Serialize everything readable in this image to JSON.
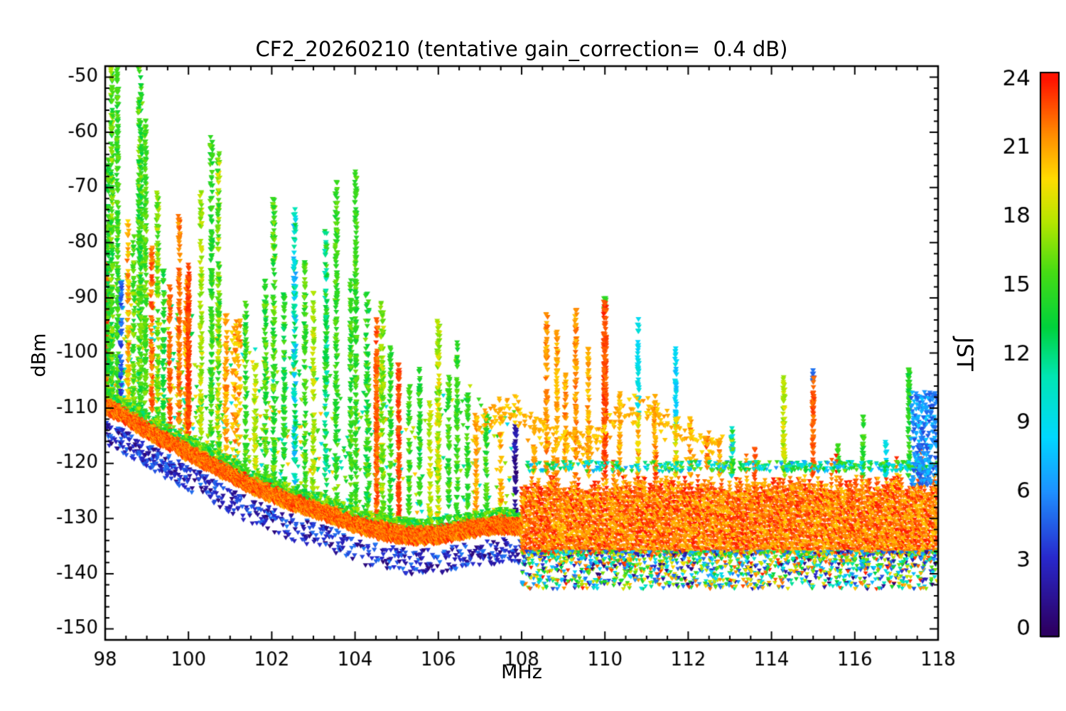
{
  "chart_data": {
    "type": "scatter",
    "title": "CF2_20260210 (tentative gain_correction=  0.4 dB)",
    "xlabel": "MHz",
    "ylabel": "dBm",
    "marker": "triangle-down",
    "grid": false,
    "xlim": [
      98,
      118
    ],
    "ylim": [
      -152,
      -48
    ],
    "xticks": [
      98,
      100,
      102,
      104,
      106,
      108,
      110,
      112,
      114,
      116,
      118
    ],
    "yticks": [
      -150,
      -140,
      -130,
      -120,
      -110,
      -100,
      -90,
      -80,
      -70,
      -60,
      -50
    ],
    "colorbar": {
      "label": "JST",
      "min": 0,
      "max": 24,
      "ticks": [
        0,
        3,
        6,
        9,
        12,
        15,
        18,
        21,
        24
      ],
      "position": "right",
      "stops": [
        [
          0.0,
          "#2d0064"
        ],
        [
          0.13,
          "#2828cc"
        ],
        [
          0.25,
          "#1e90ff"
        ],
        [
          0.35,
          "#00d8ff"
        ],
        [
          0.46,
          "#00e6b4"
        ],
        [
          0.55,
          "#00d23c"
        ],
        [
          0.65,
          "#46dc14"
        ],
        [
          0.74,
          "#b4e600"
        ],
        [
          0.82,
          "#ffdc00"
        ],
        [
          0.9,
          "#ff8c00"
        ],
        [
          1.0,
          "#ff1400"
        ]
      ]
    },
    "render_seed": 7,
    "noise_floor": {
      "points": [
        [
          98,
          -109.5
        ],
        [
          98.5,
          -111.5
        ],
        [
          99,
          -114
        ],
        [
          99.5,
          -116
        ],
        [
          100,
          -118
        ],
        [
          100.5,
          -120
        ],
        [
          101,
          -122
        ],
        [
          101.5,
          -124
        ],
        [
          102,
          -125.5
        ],
        [
          102.5,
          -127
        ],
        [
          103,
          -128.2
        ],
        [
          103.5,
          -129.5
        ],
        [
          104,
          -131
        ],
        [
          104.5,
          -132
        ],
        [
          105,
          -132.8
        ],
        [
          105.5,
          -133.2
        ],
        [
          106,
          -133
        ],
        [
          106.5,
          -132.3
        ],
        [
          107,
          -131.6
        ],
        [
          107.5,
          -131.2
        ],
        [
          107.98,
          -131.5
        ]
      ],
      "step": 0.008,
      "red_per_step": 7,
      "red_thickness": 1.7,
      "red_hour_min": 20.5,
      "red_hour_max": 24,
      "fringe_prob": 0.55,
      "fringe_hour_min": 12,
      "fringe_hour_max": 18,
      "blue_prob": 0.45,
      "blue_prob_left": 0.75,
      "blue_left_cut": 100,
      "blue_hour_min": 0.5,
      "blue_hour_max": 5.5,
      "blue_drop_min": 2.5,
      "blue_drop_max": 7
    },
    "airband": {
      "fmin": 108,
      "bottom": -136.5,
      "top_base": -122,
      "top_var": 3.5,
      "tall_prob": 0.04,
      "tall_top": -117,
      "comb_spacing": 0.04,
      "hour_min": 20,
      "hour_max": 24,
      "under_count": 1500,
      "under_depth": 6.8,
      "cap_count": 420,
      "cap_hour_min": 6,
      "cap_hour_max": 17
    },
    "fm_haze": {
      "count": 900,
      "fmax": 107.9,
      "left_bias": 1.5,
      "height": 26,
      "height_pow": 2.0,
      "hour_min": 9,
      "hour_max": 21
    },
    "arc_scatter": {
      "fmin": 106.9,
      "fmax": 112.9,
      "count": 280,
      "level": -112.5,
      "amp": 3.2,
      "freq": 2.0,
      "jitter": 3.5,
      "hour_min": 19.5,
      "hour_max": 21.5
    },
    "right_blue_cluster": {
      "fmin": 117.35,
      "fmax": 117.98,
      "top": -107,
      "bottom": -124,
      "count": 240,
      "hour_min": 4,
      "hour_max": 8
    },
    "spike_fields": [
      "freq_mhz",
      "top_dbm",
      "hour",
      "hour_spread",
      "width_mhz",
      "density",
      "base_dbm"
    ],
    "spikes": [
      [
        98.03,
        -85,
        22.5,
        1.2,
        0.05,
        4,
        null
      ],
      [
        98.07,
        -66,
        14.5,
        2,
        0.05,
        3,
        null
      ],
      [
        98.16,
        -48,
        15.5,
        2.5,
        0.06,
        3.2,
        null
      ],
      [
        98.3,
        -49,
        15,
        1.5,
        0.05,
        3,
        null
      ],
      [
        98.38,
        -88,
        4.5,
        1.5,
        0.04,
        2.2,
        null
      ],
      [
        98.55,
        -77,
        20.5,
        2,
        0.05,
        2.6,
        null
      ],
      [
        98.68,
        -80,
        16,
        2,
        0.05,
        2.4,
        null
      ],
      [
        98.84,
        -48,
        15,
        2.2,
        0.1,
        4.5,
        null
      ],
      [
        98.97,
        -59,
        15.5,
        1.5,
        0.05,
        3,
        null
      ],
      [
        99.12,
        -82,
        22,
        1.5,
        0.05,
        2.6,
        null
      ],
      [
        99.26,
        -72,
        16.5,
        2,
        0.05,
        2.6,
        null
      ],
      [
        99.4,
        -86,
        14,
        2,
        0.05,
        2.2,
        null
      ],
      [
        99.55,
        -89,
        22.5,
        1,
        0.04,
        3,
        null
      ],
      [
        99.78,
        -76,
        22,
        1.2,
        0.05,
        3,
        null
      ],
      [
        99.95,
        -88,
        21,
        1.5,
        0.08,
        2.6,
        null
      ],
      [
        100.0,
        -85,
        23,
        0.8,
        0.05,
        6,
        null
      ],
      [
        100.3,
        -72,
        17.5,
        1.5,
        0.05,
        2.6,
        null
      ],
      [
        100.55,
        -62,
        15,
        1.5,
        0.06,
        3,
        null
      ],
      [
        100.72,
        -65,
        16.5,
        3,
        0.06,
        2.8,
        null
      ],
      [
        100.9,
        -94,
        21,
        1.5,
        0.06,
        2.6,
        null
      ],
      [
        101.15,
        -95,
        21,
        1.8,
        0.22,
        3.4,
        null
      ],
      [
        101.38,
        -92,
        15,
        2,
        0.06,
        2.4,
        null
      ],
      [
        101.6,
        -103,
        18,
        1.5,
        0.06,
        2.4,
        null
      ],
      [
        101.85,
        -88,
        15,
        2.5,
        0.06,
        2.6,
        null
      ],
      [
        102.05,
        -73,
        15.5,
        2.5,
        0.06,
        2.8,
        null
      ],
      [
        102.3,
        -90,
        14,
        2,
        0.05,
        2.4,
        null
      ],
      [
        102.55,
        -75,
        10,
        3.5,
        0.06,
        2.8,
        null
      ],
      [
        102.8,
        -84,
        15,
        2,
        0.05,
        2.4,
        null
      ],
      [
        103.0,
        -90,
        17.5,
        1.5,
        0.05,
        2.4,
        null
      ],
      [
        103.3,
        -79,
        13,
        3,
        0.06,
        2.6,
        null
      ],
      [
        103.55,
        -70,
        15,
        1.5,
        0.06,
        2.8,
        null
      ],
      [
        103.9,
        -88,
        15,
        2,
        0.05,
        2.4,
        null
      ],
      [
        104.02,
        -68,
        15,
        1.5,
        0.05,
        2.8,
        null
      ],
      [
        104.3,
        -90,
        14.5,
        2.5,
        0.1,
        2.8,
        null
      ],
      [
        104.52,
        -95,
        22.5,
        1,
        0.05,
        5,
        null
      ],
      [
        104.65,
        -92,
        17,
        2,
        0.08,
        3,
        null
      ],
      [
        104.85,
        -100,
        15,
        1.5,
        0.05,
        2.4,
        null
      ],
      [
        105.05,
        -103,
        23,
        0.7,
        0.04,
        4,
        null
      ],
      [
        105.3,
        -107,
        15,
        1.5,
        0.05,
        2.4,
        null
      ],
      [
        105.55,
        -104,
        14.5,
        1.5,
        0.05,
        2.4,
        null
      ],
      [
        105.8,
        -110,
        18,
        1.5,
        0.05,
        2.4,
        null
      ],
      [
        106.0,
        -95,
        18,
        2.2,
        0.07,
        3.6,
        null
      ],
      [
        106.25,
        -105,
        15,
        1.5,
        0.05,
        2.4,
        null
      ],
      [
        106.45,
        -99,
        15,
        1.5,
        0.05,
        2.6,
        null
      ],
      [
        106.7,
        -108,
        15,
        1.5,
        0.05,
        2.4,
        null
      ],
      [
        106.9,
        -112,
        21,
        1,
        0.05,
        2.4,
        null
      ],
      [
        107.15,
        -112,
        15,
        1.5,
        0.05,
        2.4,
        null
      ],
      [
        107.5,
        -111,
        20.5,
        1.5,
        0.05,
        2.4,
        null
      ],
      [
        107.85,
        -114,
        1.5,
        1.5,
        0.06,
        3,
        -133
      ],
      [
        108.3,
        -115,
        21,
        1,
        0.04,
        2.6,
        null
      ],
      [
        108.6,
        -94,
        21.5,
        1.2,
        0.05,
        2.8,
        null
      ],
      [
        108.85,
        -97,
        21,
        1.2,
        0.04,
        2.6,
        null
      ],
      [
        109.05,
        -105,
        21,
        1.5,
        0.04,
        2.4,
        null
      ],
      [
        109.3,
        -93,
        21.5,
        1.2,
        0.05,
        2.8,
        null
      ],
      [
        109.6,
        -100,
        21,
        1.2,
        0.04,
        2.6,
        null
      ],
      [
        110.0,
        -90.5,
        15,
        1,
        0.05,
        3,
        -92.5
      ],
      [
        110.0,
        -91.5,
        23,
        0.9,
        0.07,
        6,
        null
      ],
      [
        110.35,
        -108,
        21,
        1.2,
        0.04,
        2.4,
        null
      ],
      [
        110.8,
        -95,
        9,
        1,
        0.04,
        2.6,
        -112
      ],
      [
        110.8,
        -112,
        20,
        2,
        0.04,
        2.4,
        null
      ],
      [
        111.2,
        -109,
        21,
        1.5,
        0.04,
        2.4,
        null
      ],
      [
        111.7,
        -100,
        8.5,
        1.2,
        0.04,
        2.6,
        -113
      ],
      [
        111.7,
        -113,
        19,
        2.5,
        0.04,
        2.4,
        null
      ],
      [
        112.05,
        -113,
        21,
        1.5,
        0.04,
        2.4,
        null
      ],
      [
        112.45,
        -116,
        22,
        1.5,
        0.04,
        2.4,
        null
      ],
      [
        112.75,
        -117,
        21,
        1.5,
        0.04,
        2.4,
        null
      ],
      [
        113.05,
        -114.5,
        12,
        6,
        0.06,
        4,
        null
      ],
      [
        113.6,
        -118.5,
        23,
        1,
        0.04,
        2.4,
        null
      ],
      [
        114.3,
        -105.5,
        18,
        1.6,
        0.05,
        3.4,
        null
      ],
      [
        115.0,
        -104,
        5,
        0.6,
        0.03,
        2.6,
        -106
      ],
      [
        115.0,
        -105.5,
        22.5,
        1,
        0.05,
        4,
        null
      ],
      [
        115.6,
        -117.5,
        15,
        1.5,
        0.04,
        2.4,
        null
      ],
      [
        116.2,
        -112,
        15,
        1.2,
        0.04,
        2.6,
        null
      ],
      [
        116.75,
        -117,
        9,
        1.5,
        0.04,
        2.4,
        null
      ],
      [
        117.3,
        -103.5,
        14.5,
        1.2,
        0.05,
        3.2,
        null
      ]
    ]
  }
}
